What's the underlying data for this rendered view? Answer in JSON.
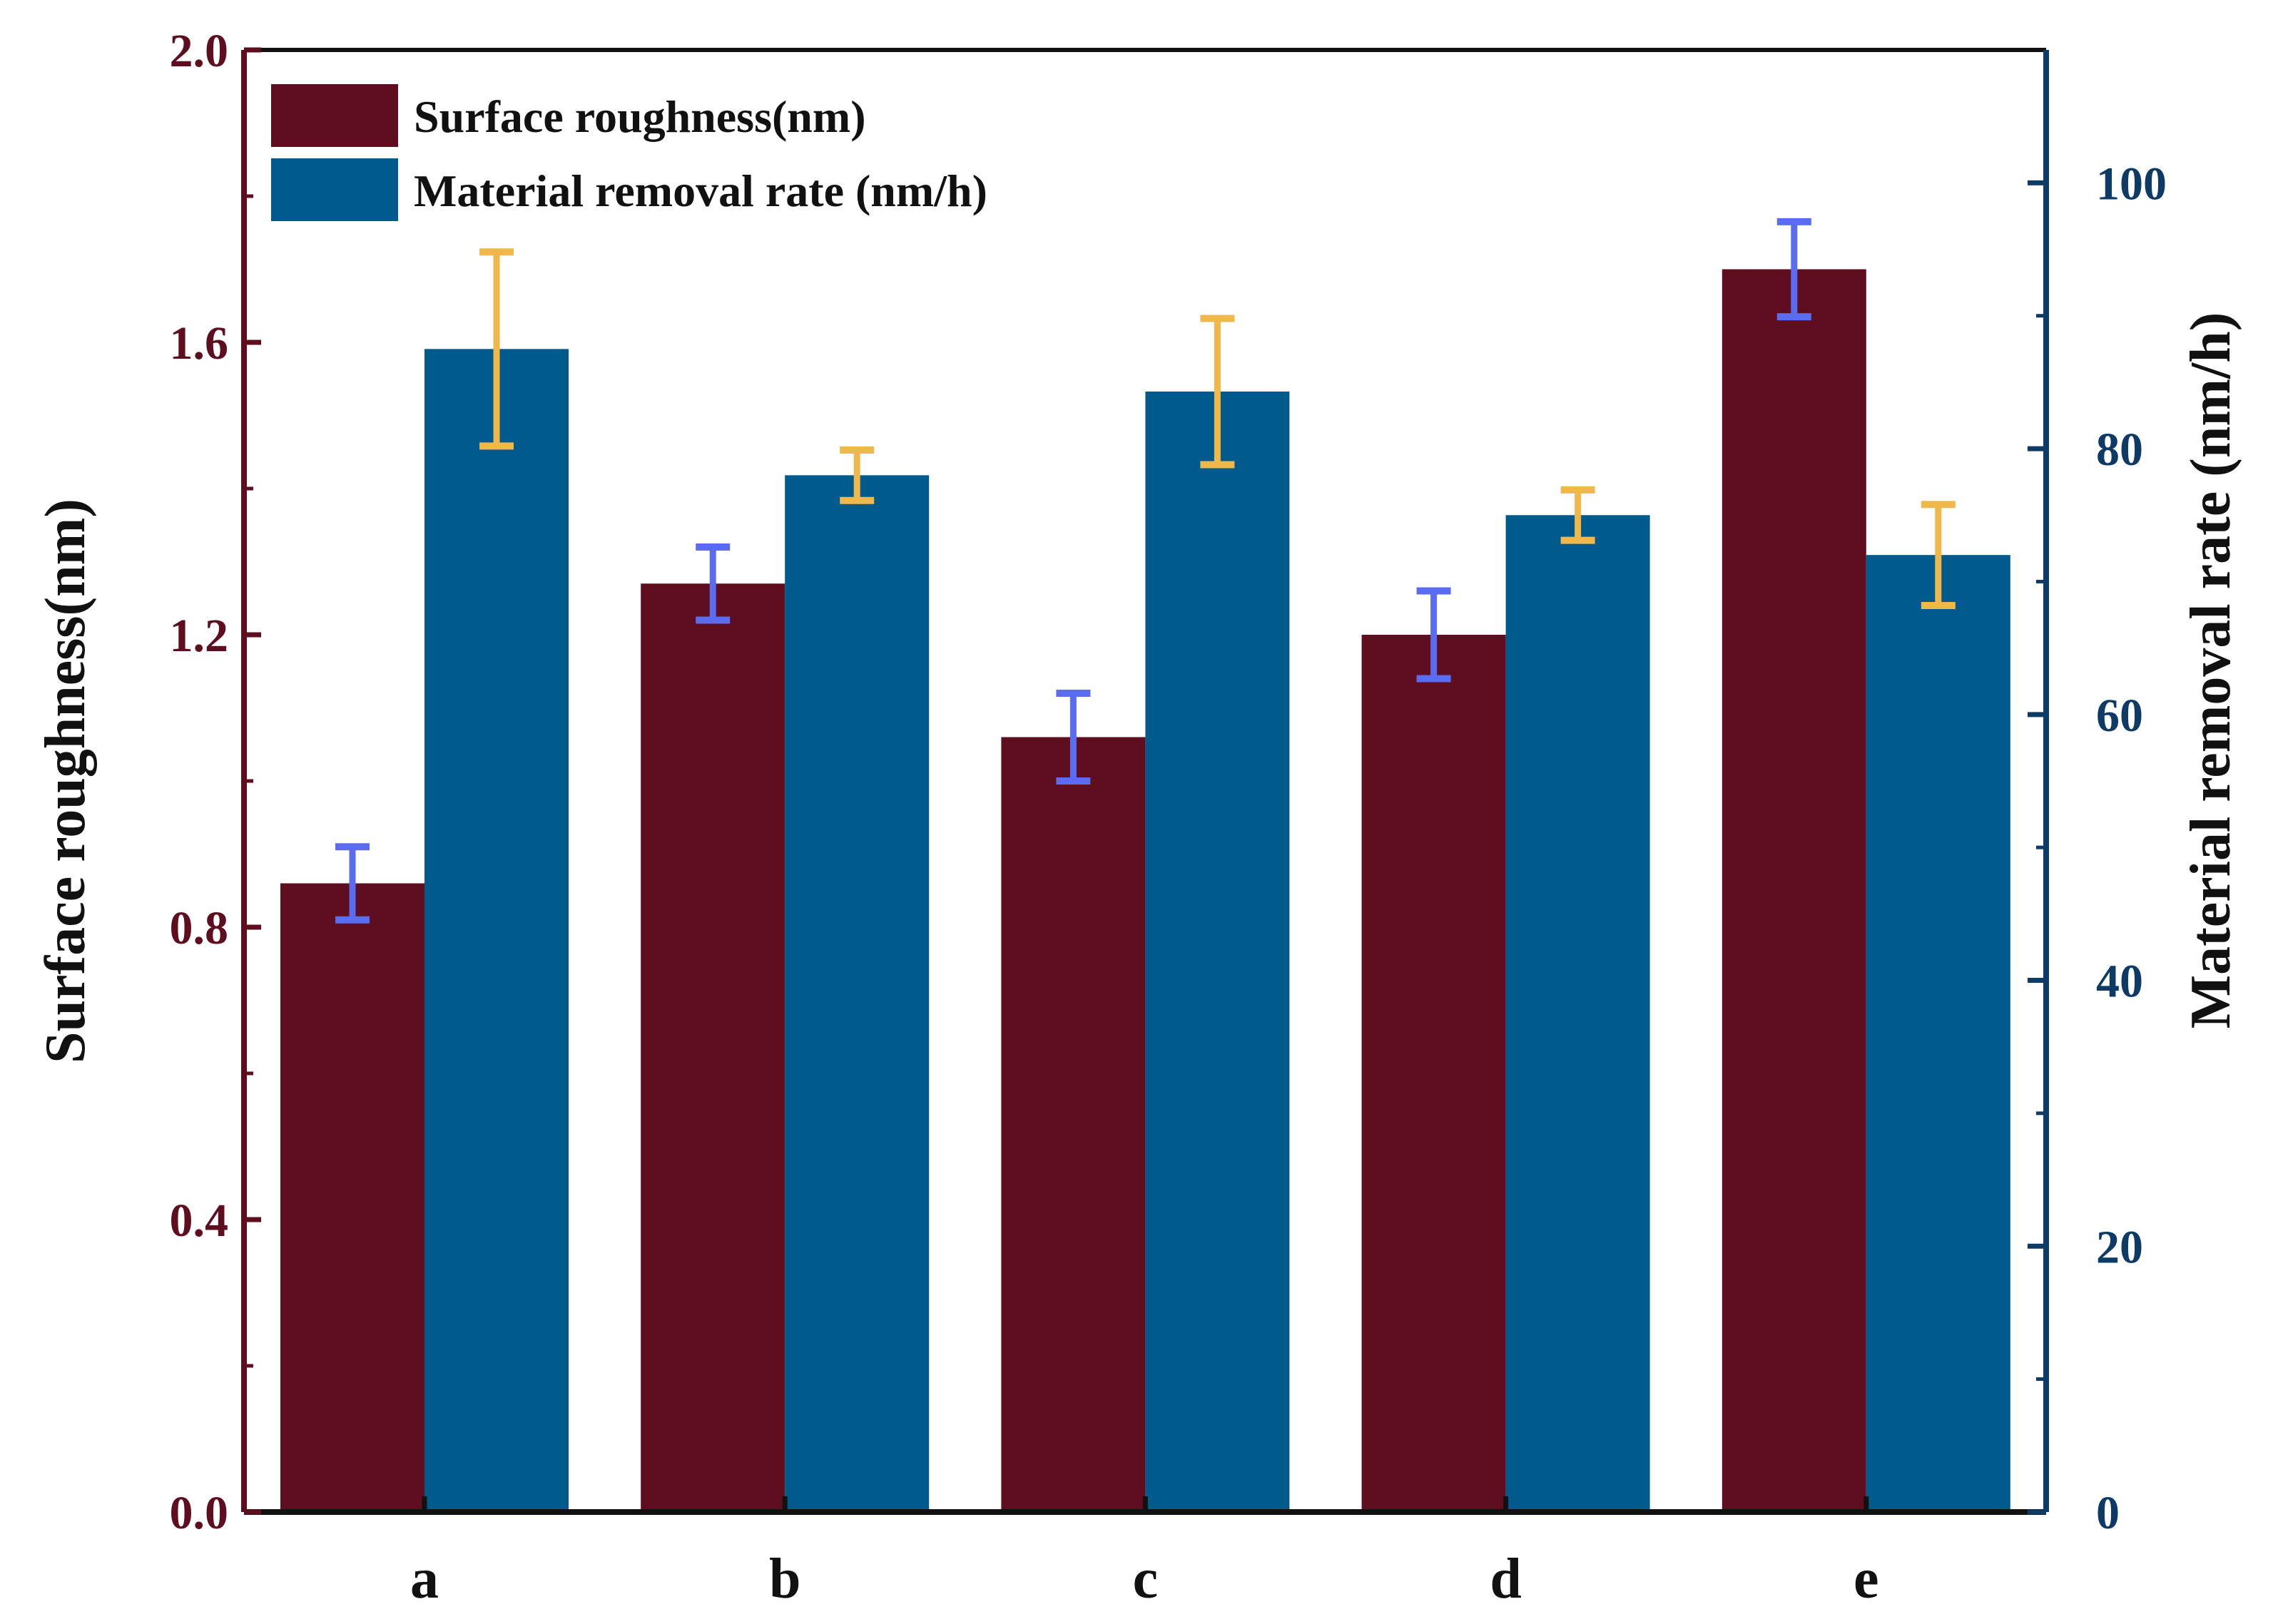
{
  "chart_data": {
    "type": "bar",
    "categories": [
      "a",
      "b",
      "c",
      "d",
      "e"
    ],
    "series": [
      {
        "name": "Surface roughness(nm)",
        "axis": "left",
        "values": [
          0.86,
          1.27,
          1.06,
          1.2,
          1.7
        ],
        "errors": [
          0.05,
          0.05,
          0.06,
          0.06,
          0.065
        ],
        "color": "#5e0e1e",
        "error_color": "#5a6cf0"
      },
      {
        "name": "Material removal rate (nm/h)",
        "axis": "right",
        "values": [
          87.5,
          78.0,
          84.3,
          75.0,
          72.0
        ],
        "errors": [
          7.3,
          1.9,
          5.5,
          1.9,
          3.8
        ],
        "color": "#005a8c",
        "error_color": "#f0b84a"
      }
    ],
    "title": "",
    "xlabel": "",
    "ylabel_left": "Surface roughness(nm)",
    "ylabel_right": "Material removal rate (nm/h)",
    "ylim_left": [
      0.0,
      2.0
    ],
    "yticks_left": [
      "0.0",
      "0.4",
      "0.8",
      "1.2",
      "1.6",
      "2.0"
    ],
    "ylim_right": [
      0,
      110
    ],
    "yticks_right": [
      "0",
      "20",
      "40",
      "60",
      "80",
      "100"
    ],
    "legend_position": "top-left",
    "grid": false,
    "left_axis_color": "#5e0e1e",
    "right_axis_color": "#0d3b66"
  }
}
